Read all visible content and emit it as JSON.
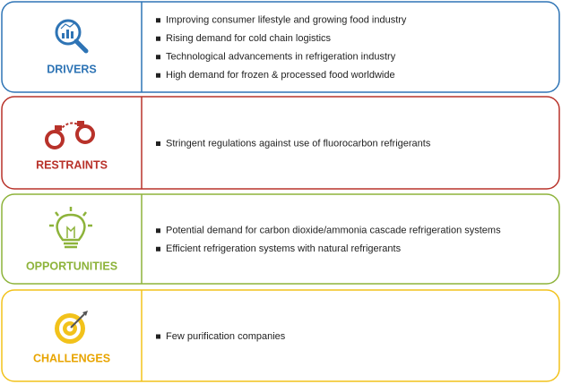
{
  "sections": [
    {
      "label": "DRIVERS",
      "items": [
        "Improving consumer lifestyle and growing food industry",
        "Rising demand for cold chain logistics",
        "Technological advancements in refrigeration industry",
        "High demand for frozen & processed food worldwide"
      ]
    },
    {
      "label": "RESTRAINTS",
      "items": [
        "Stringent regulations against use of fluorocarbon refrigerants"
      ]
    },
    {
      "label": "OPPORTUNITIES",
      "items": [
        "Potential demand for carbon dioxide/ammonia cascade refrigeration systems",
        "Efficient refrigeration systems with natural refrigerants"
      ]
    },
    {
      "label": "CHALLENGES",
      "items": [
        "Few purification companies"
      ]
    }
  ]
}
